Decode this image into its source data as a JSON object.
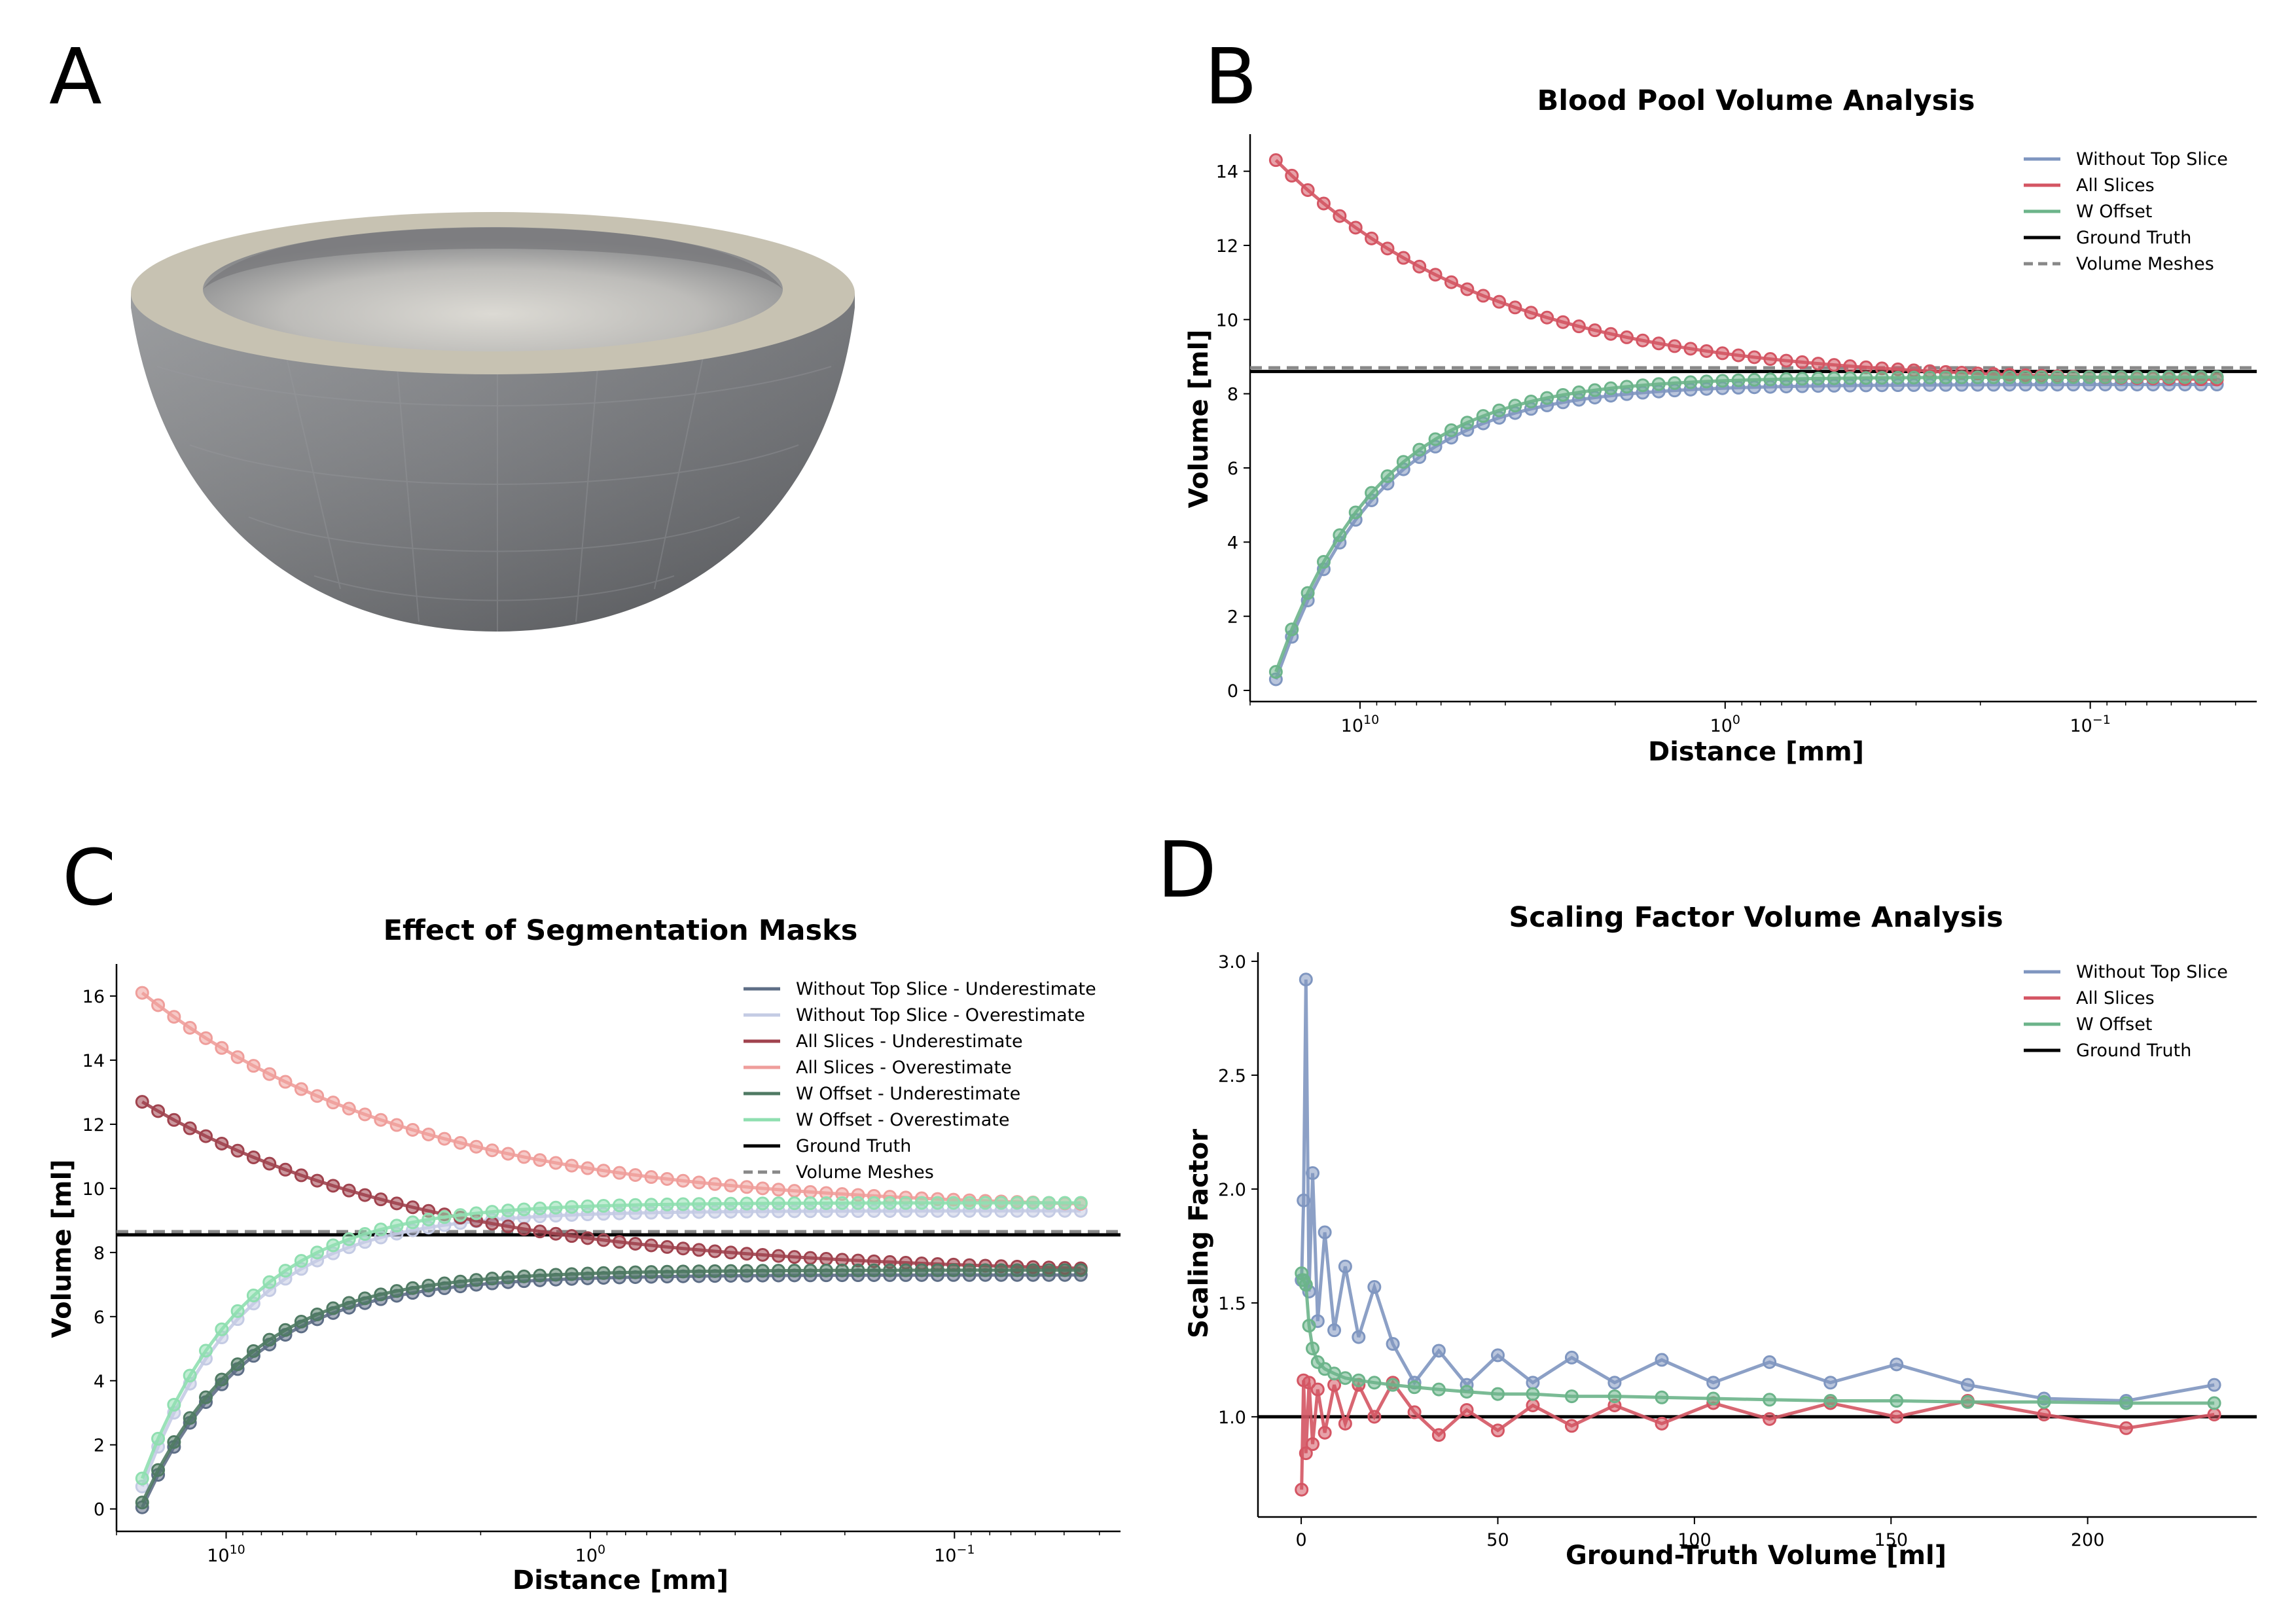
{
  "panels": {
    "A": {
      "letter": "A"
    },
    "B": {
      "letter": "B"
    },
    "C": {
      "letter": "C"
    },
    "D": {
      "letter": "D"
    }
  },
  "colors": {
    "blue": "#7f96c0",
    "red": "#d45563",
    "green": "#6cb48a",
    "black": "#000000",
    "gray": "#888888",
    "dark_blue": "#5e6e86",
    "light_blue": "#c4cbe4",
    "dark_red": "#a0434e",
    "light_red": "#ef9e9b",
    "dark_green": "#4f7a63",
    "light_green": "#8fdfb0",
    "mesh_rim": "#c7c2b2",
    "mesh_inner": "#cfcfcc",
    "mesh_outer": "#7a7c80"
  },
  "chart_data": [
    {
      "panel": "B",
      "type": "line",
      "title": "Blood Pool Volume Analysis",
      "xlabel": "Distance [mm]",
      "ylabel": "Volume [ml]",
      "xscale": "log",
      "xaxis_inverted": true,
      "xlim": [
        20,
        0.035
      ],
      "ylim": [
        -0.3,
        15
      ],
      "xtick_values": [
        10,
        1,
        0.1
      ],
      "xticks": [
        "10",
        "0",
        "−1"
      ],
      "yticks": [
        "0",
        "2",
        "4",
        "6",
        "8",
        "10",
        "12",
        "14"
      ],
      "legend_position": "top-right",
      "legend": [
        "Without Top Slice",
        "All Slices",
        "W Offset",
        "Ground Truth",
        "Volume Meshes"
      ],
      "ground_truth": 8.6,
      "volume_meshes": 8.7,
      "x_min": 0.045,
      "x_max": 17,
      "num_points": 60,
      "series": [
        {
          "name": "Without Top Slice",
          "color_key": "blue",
          "start": 0.3,
          "end": 8.25,
          "k": 1.55
        },
        {
          "name": "All Slices",
          "color_key": "red",
          "start": 14.3,
          "end": 8.3,
          "k": 0.72
        },
        {
          "name": "W Offset",
          "color_key": "green",
          "start": 0.5,
          "end": 8.45,
          "k": 1.55
        }
      ]
    },
    {
      "panel": "C",
      "type": "line",
      "title": "Effect of Segmentation Masks",
      "xlabel": "Distance [mm]",
      "ylabel": "Volume [ml]",
      "xscale": "log",
      "xaxis_inverted": true,
      "xlim": [
        20,
        0.035
      ],
      "ylim": [
        -0.7,
        17
      ],
      "xtick_values": [
        10,
        1,
        0.1
      ],
      "xticks": [
        "10",
        "0",
        "−1"
      ],
      "yticks": [
        "0",
        "2",
        "4",
        "6",
        "8",
        "10",
        "12",
        "14",
        "16"
      ],
      "legend_position": "top-right",
      "legend": [
        "Without Top Slice - Underestimate",
        "Without Top Slice - Overestimate",
        "All Slices - Underestimate",
        "All Slices - Overestimate",
        "W Offset - Underestimate",
        "W Offset - Overestimate",
        "Ground Truth",
        "Volume Meshes"
      ],
      "ground_truth": 8.55,
      "volume_meshes": 8.65,
      "x_min": 0.045,
      "x_max": 17,
      "num_points": 60,
      "series": [
        {
          "name": "Without Top Slice - Underestimate",
          "color_key": "dark_blue",
          "start": 0.05,
          "end": 7.3,
          "k": 1.5
        },
        {
          "name": "Without Top Slice - Overestimate",
          "color_key": "light_blue",
          "start": 0.7,
          "end": 9.3,
          "k": 1.55
        },
        {
          "name": "All Slices - Underestimate",
          "color_key": "dark_red",
          "start": 12.7,
          "end": 7.3,
          "k": 0.55
        },
        {
          "name": "All Slices - Overestimate",
          "color_key": "light_red",
          "start": 16.1,
          "end": 9.3,
          "k": 0.58
        },
        {
          "name": "W Offset - Underestimate",
          "color_key": "dark_green",
          "start": 0.2,
          "end": 7.45,
          "k": 1.5
        },
        {
          "name": "W Offset - Overestimate",
          "color_key": "light_green",
          "start": 0.95,
          "end": 9.55,
          "k": 1.55
        }
      ]
    },
    {
      "panel": "D",
      "type": "line",
      "title": "Scaling Factor Volume Analysis",
      "xlabel": "Ground-Truth Volume [ml]",
      "ylabel": "Scaling Factor",
      "xlim": [
        -11,
        243
      ],
      "ylim": [
        0.56,
        3.04
      ],
      "xticks": [
        0,
        50,
        100,
        150,
        200
      ],
      "yticks": [
        1.0,
        1.5,
        2.0,
        2.5,
        3.0
      ],
      "legend_position": "top-right",
      "legend": [
        "Without Top Slice",
        "All Slices",
        "W Offset",
        "Ground Truth"
      ],
      "ground_truth": 1.0,
      "x": [
        0.1,
        0.6,
        1.2,
        2.0,
        2.9,
        4.2,
        6.0,
        8.4,
        11.2,
        14.6,
        18.6,
        23.3,
        28.8,
        35.0,
        42.1,
        50.0,
        58.9,
        68.8,
        79.7,
        91.7,
        104.8,
        119.1,
        134.6,
        151.4,
        169.5,
        188.9,
        209.8,
        232.2
      ],
      "series": [
        {
          "name": "Without Top Slice",
          "color_key": "blue",
          "values": [
            1.6,
            1.95,
            2.92,
            1.55,
            2.07,
            1.42,
            1.81,
            1.38,
            1.66,
            1.35,
            1.57,
            1.32,
            1.15,
            1.29,
            1.14,
            1.27,
            1.15,
            1.26,
            1.15,
            1.25,
            1.15,
            1.24,
            1.15,
            1.23,
            1.14,
            1.08,
            1.07,
            1.14
          ]
        },
        {
          "name": "All Slices",
          "color_key": "red",
          "values": [
            0.68,
            1.16,
            0.84,
            1.15,
            0.88,
            1.12,
            0.93,
            1.14,
            0.97,
            1.14,
            1.0,
            1.15,
            1.02,
            0.92,
            1.03,
            0.94,
            1.05,
            0.96,
            1.05,
            0.97,
            1.06,
            0.99,
            1.06,
            1.0,
            1.07,
            1.01,
            0.95,
            1.01
          ]
        },
        {
          "name": "W Offset",
          "color_key": "green",
          "values": [
            1.63,
            1.6,
            1.58,
            1.4,
            1.3,
            1.24,
            1.21,
            1.19,
            1.17,
            1.16,
            1.15,
            1.14,
            1.13,
            1.12,
            1.11,
            1.1,
            1.1,
            1.09,
            1.09,
            1.085,
            1.08,
            1.075,
            1.07,
            1.07,
            1.065,
            1.065,
            1.06,
            1.06
          ]
        }
      ]
    }
  ]
}
